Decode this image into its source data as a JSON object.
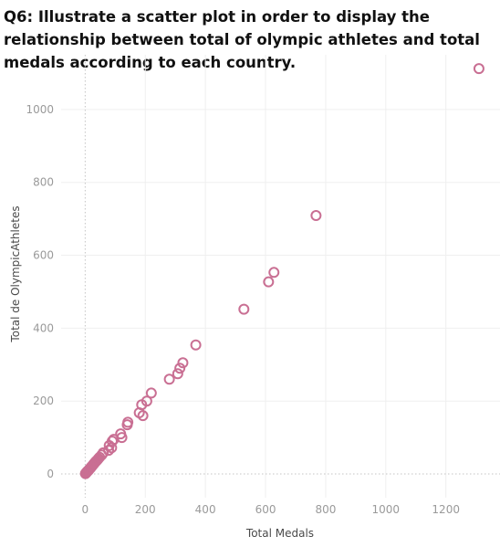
{
  "title": "Q6: Illustrate a scatter plot in order to display the relationship between total of olympic athletes and total medals according to each country.",
  "chart_data": {
    "type": "scatter",
    "xlabel": "Total Medals",
    "ylabel": "Total de OlympicAthletes",
    "xlim": [
      -80,
      1380
    ],
    "ylim": [
      -65,
      1150
    ],
    "xticks": [
      0,
      200,
      400,
      600,
      800,
      1000,
      1200
    ],
    "yticks": [
      0,
      200,
      400,
      600,
      800,
      1000
    ],
    "marker_color": "#c96f93",
    "grid": true,
    "legend": "none",
    "points": [
      [
        1,
        1
      ],
      [
        2,
        2
      ],
      [
        3,
        3
      ],
      [
        4,
        4
      ],
      [
        5,
        5
      ],
      [
        6,
        6
      ],
      [
        8,
        8
      ],
      [
        10,
        9
      ],
      [
        12,
        11
      ],
      [
        14,
        13
      ],
      [
        16,
        15
      ],
      [
        18,
        17
      ],
      [
        20,
        19
      ],
      [
        22,
        21
      ],
      [
        25,
        24
      ],
      [
        28,
        27
      ],
      [
        30,
        29
      ],
      [
        33,
        32
      ],
      [
        36,
        35
      ],
      [
        40,
        38
      ],
      [
        44,
        42
      ],
      [
        48,
        46
      ],
      [
        55,
        52
      ],
      [
        60,
        58
      ],
      [
        78,
        65
      ],
      [
        80,
        78
      ],
      [
        88,
        72
      ],
      [
        90,
        90
      ],
      [
        95,
        95
      ],
      [
        118,
        110
      ],
      [
        122,
        100
      ],
      [
        140,
        135
      ],
      [
        142,
        142
      ],
      [
        180,
        168
      ],
      [
        188,
        190
      ],
      [
        192,
        160
      ],
      [
        205,
        200
      ],
      [
        220,
        222
      ],
      [
        280,
        260
      ],
      [
        308,
        275
      ],
      [
        315,
        290
      ],
      [
        325,
        305
      ],
      [
        368,
        354
      ],
      [
        528,
        452
      ],
      [
        610,
        527
      ],
      [
        628,
        553
      ],
      [
        768,
        709
      ],
      [
        1310,
        1112
      ]
    ]
  }
}
